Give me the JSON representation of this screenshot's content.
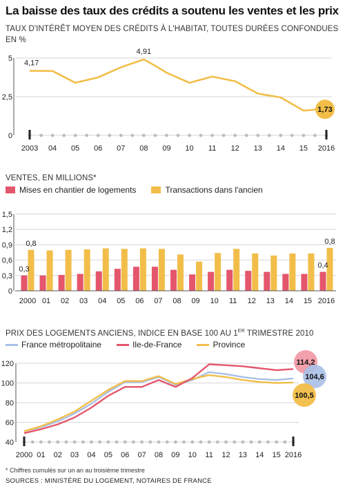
{
  "title": "La baisse des taux des crédits a soutenu les ventes et les prix",
  "colors": {
    "yellow": "#f2be49",
    "red": "#e4566c",
    "blue": "#a9bfe6",
    "axis": "#555555",
    "grid": "#d6d6d6",
    "dot": "#bdbdbd",
    "text": "#222222"
  },
  "chart_data": [
    {
      "type": "line",
      "subtitle": "TAUX D'INTÉRÊT MOYEN DES CRÉDITS À L'HABITAT, TOUTES DURÉES CONFONDUES",
      "unit": "EN %",
      "categories": [
        "2003",
        "04",
        "05",
        "06",
        "07",
        "08",
        "09",
        "10",
        "11",
        "12",
        "13",
        "14",
        "15",
        "2016"
      ],
      "x": [
        2003.0,
        2004.0,
        2005.0,
        2006.0,
        2007.0,
        2008.0,
        2008.5,
        2009.0,
        2010.0,
        2010.5,
        2011.0,
        2012.0,
        2013.0,
        2014.0,
        2015.0,
        2016.0
      ],
      "values": [
        4.17,
        4.16,
        3.4,
        3.75,
        4.4,
        4.91,
        4.5,
        4.05,
        3.4,
        3.6,
        3.8,
        3.5,
        2.7,
        2.45,
        1.6,
        1.73
      ],
      "ylim": [
        0,
        5
      ],
      "yticks": [
        "0",
        "2,5",
        "5"
      ],
      "labels": {
        "first": "4,17",
        "peak": "4,91",
        "last": "1,73"
      }
    },
    {
      "type": "bar",
      "subtitle": "VENTES, EN MILLIONS*",
      "categories": [
        "2000",
        "01",
        "02",
        "03",
        "04",
        "05",
        "06",
        "07",
        "08",
        "09",
        "10",
        "11",
        "12",
        "13",
        "14",
        "15",
        "2016"
      ],
      "series": [
        {
          "name": "Mises en chantier de logements",
          "values": [
            0.3,
            0.3,
            0.31,
            0.33,
            0.38,
            0.43,
            0.47,
            0.47,
            0.41,
            0.32,
            0.37,
            0.41,
            0.39,
            0.37,
            0.33,
            0.33,
            0.37
          ]
        },
        {
          "name": "Transactions dans l'ancien",
          "values": [
            0.8,
            0.79,
            0.8,
            0.81,
            0.83,
            0.82,
            0.83,
            0.82,
            0.71,
            0.57,
            0.74,
            0.82,
            0.73,
            0.69,
            0.73,
            0.73,
            0.84
          ]
        }
      ],
      "ylim": [
        0,
        1.5
      ],
      "yticks": [
        "0",
        "0,3",
        "0,6",
        "0,9",
        "1,2",
        "1,5"
      ],
      "labels": {
        "red_first": "0,3",
        "yellow_first": "0,8",
        "red_last": "0,4",
        "yellow_last": "0,8"
      }
    },
    {
      "type": "line",
      "subtitle": "PRIX DES LOGEMENTS ANCIENS, INDICE EN BASE 100 AU 1",
      "subtitle_sup": "ER",
      "subtitle_end": " TRIMESTRE 2010",
      "categories": [
        "2000",
        "01",
        "02",
        "03",
        "04",
        "05",
        "06",
        "07",
        "08",
        "09",
        "10",
        "11",
        "12",
        "13",
        "14",
        "15",
        "2016"
      ],
      "series": [
        {
          "name": "France métropolitaine",
          "values": [
            51,
            55,
            61,
            69,
            79,
            91,
            101,
            101,
            106,
            98,
            103,
            111,
            109,
            106,
            104,
            103,
            104.6
          ]
        },
        {
          "name": "Ile-de-France",
          "values": [
            49,
            53,
            58,
            65,
            75,
            87,
            96,
            96,
            103,
            96,
            105,
            119,
            118,
            117,
            115,
            113,
            114.2
          ]
        },
        {
          "name": "Province",
          "values": [
            51,
            56,
            63,
            71,
            82,
            93,
            102,
            102,
            107,
            99,
            104,
            108,
            106,
            103,
            101,
            100,
            100.5
          ]
        }
      ],
      "ylim": [
        40,
        120
      ],
      "yticks": [
        "40",
        "60",
        "80",
        "100",
        "120"
      ],
      "labels": {
        "idf": "114,2",
        "france": "104,6",
        "province": "100,5"
      }
    }
  ],
  "footnote": "* Chiffres cumulés sur un an au troisième trimestre",
  "sources": "SOURCES : MINISTÈRE DU LOGEMENT, NOTAIRES DE FRANCE"
}
